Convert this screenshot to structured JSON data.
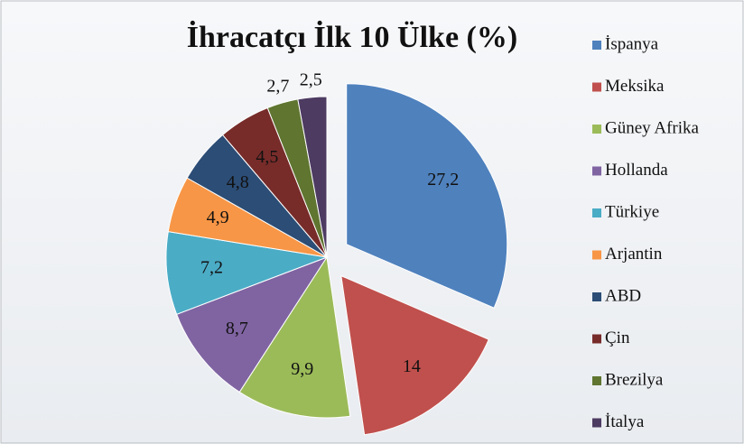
{
  "chart_data": {
    "type": "pie",
    "title": "İhracatçı İlk 10 Ülke (%)",
    "categories": [
      "İspanya",
      "Meksika",
      "Güney Afrika",
      "Hollanda",
      "Türkiye",
      "Arjantin",
      "ABD",
      "Çin",
      "Brezilya",
      "İtalya"
    ],
    "values": [
      27.2,
      14,
      9.9,
      8.7,
      7.2,
      4.9,
      4.8,
      4.5,
      2.7,
      2.5
    ],
    "value_labels": [
      "27,2",
      "14",
      "9,9",
      "8,7",
      "7,2",
      "4,9",
      "4,8",
      "4,5",
      "2,7",
      "2,5"
    ],
    "colors": [
      "#4f81bd",
      "#c0504d",
      "#9bbb59",
      "#8064a2",
      "#4bacc6",
      "#f79646",
      "#2c4d75",
      "#772c2a",
      "#5f7530",
      "#4d3b62"
    ],
    "legend": "right"
  }
}
